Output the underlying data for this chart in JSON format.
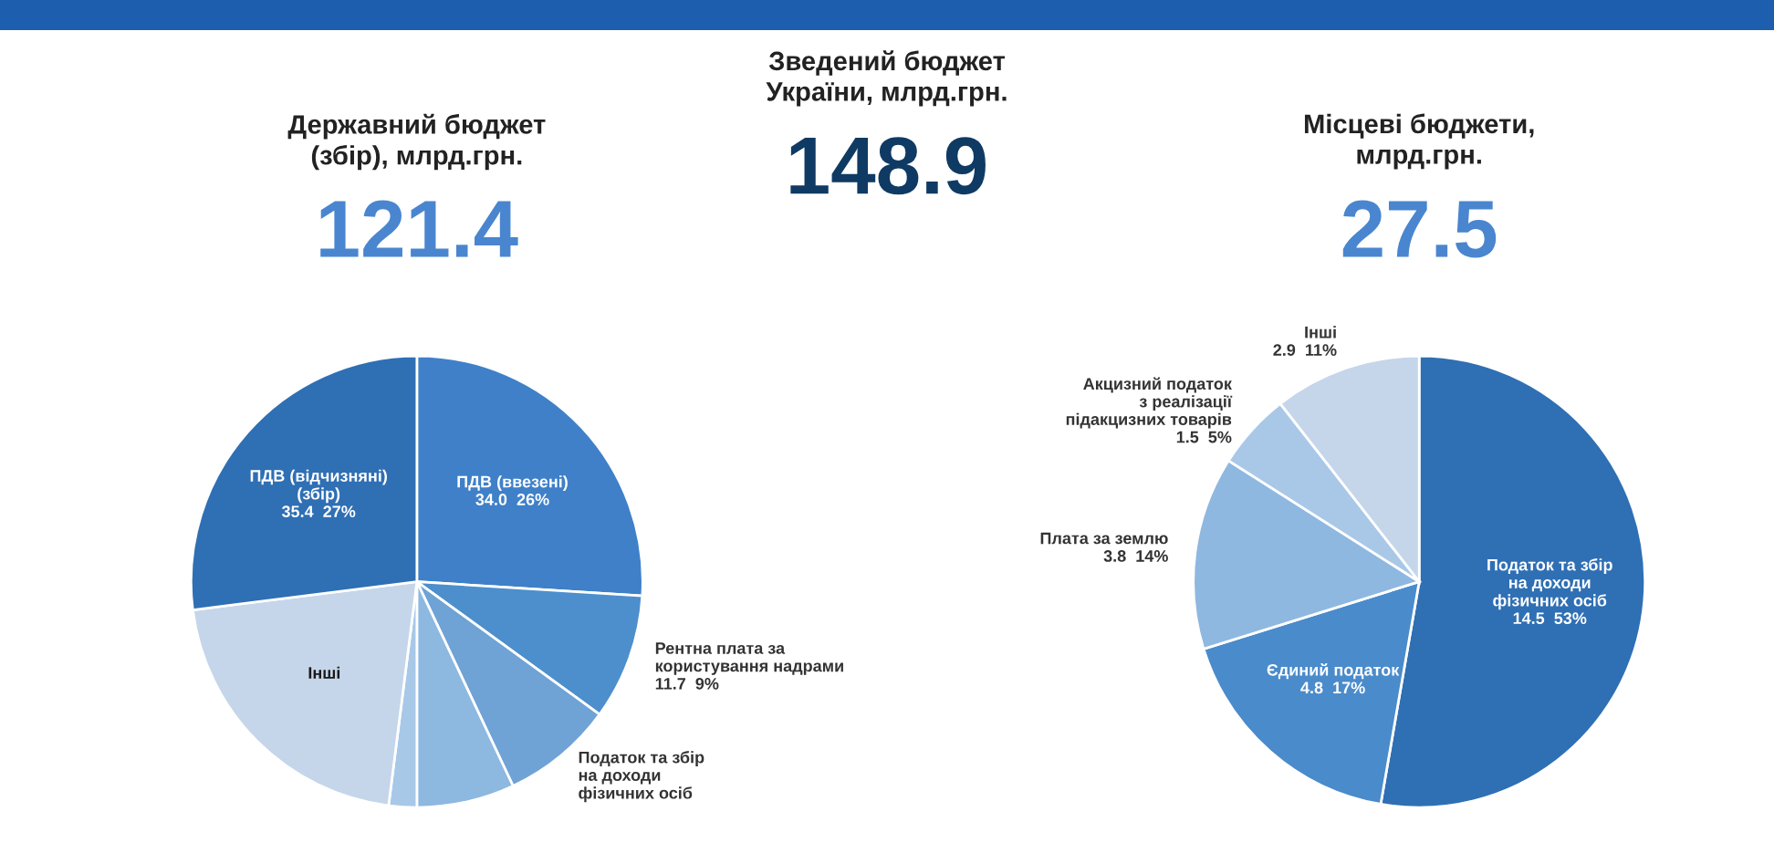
{
  "chart_data": [
    {
      "type": "pie",
      "title": "Державний бюджет\n(збір), млрд.грн.",
      "subtitle": "121.4",
      "categories": [
        "ПДВ (ввезені)",
        "Рентна плата за\nкористування надрами",
        "Податок та збір\nна доходи\nфізичних осіб",
        null,
        null,
        "Інші",
        "ПДВ (відчизняні) (збір)"
      ],
      "values": [
        26,
        9,
        8,
        7,
        2,
        21,
        27
      ],
      "value_labels": [
        "34.0  26%",
        "11.7  9%",
        null,
        null,
        null,
        null,
        "35.4  27%"
      ],
      "colors": [
        "#3f80c8",
        "#4d8fcc",
        "#6fa3d6",
        "#8db8e0",
        "#a8c8e8",
        "#c5d6ea",
        "#2f6fb4"
      ]
    },
    {
      "type": "other",
      "title": "Зведений бюджет\nУкраїни, млрд.грн.",
      "subtitle": "148.9"
    },
    {
      "type": "pie",
      "title": "Місцеві бюджети,\nмлрд.грн.",
      "subtitle": "27.5",
      "categories": [
        "Податок та збір\nна доходи\nфізичних осіб",
        "Єдиний податок",
        "Плата за землю",
        "Акцизний податок\nз реалізації\nпідакцизних товарів",
        "Інші"
      ],
      "values": [
        14.5,
        4.8,
        3.8,
        1.5,
        2.9
      ],
      "value_labels": [
        "14.5  53%",
        "4.8  17%",
        "3.8  14%",
        "1.5  5%",
        "2.9  11%"
      ],
      "colors": [
        "#2f6fb4",
        "#4a8bcb",
        "#8fb8e0",
        "#a9c8e8",
        "#c5d6ea"
      ]
    }
  ]
}
